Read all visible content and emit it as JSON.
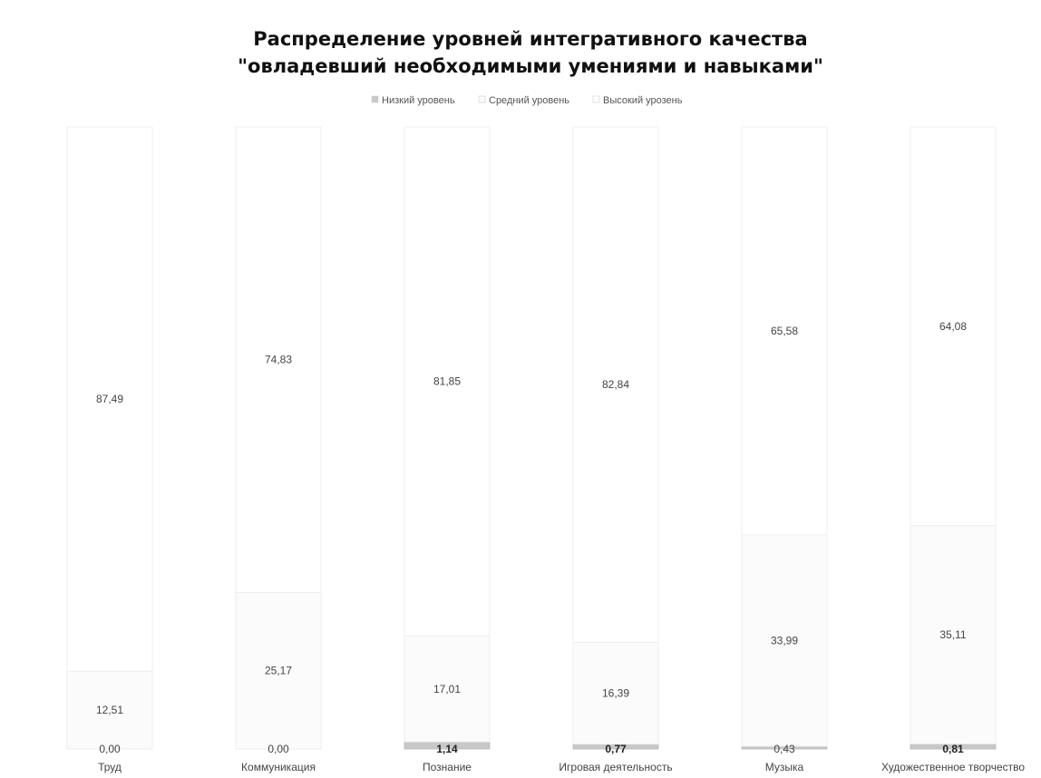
{
  "chart_data": {
    "type": "bar",
    "stacked": true,
    "title_lines": [
      "Распределение уровней интегративного качества",
      "\"овладевший необходимыми умениями и навыками\""
    ],
    "legend_position": "top",
    "categories": [
      "Труд",
      "Коммуникация",
      "Познание",
      "Игровая деятельность",
      "Музыка",
      "Художественное творчество"
    ],
    "series": [
      {
        "name": "Низкий уровень",
        "color": "#c8c8c8",
        "values": [
          0,
          0,
          1.14,
          0.77,
          0.43,
          0.81
        ],
        "labels": [
          "0,00",
          "0,00",
          "1,14",
          "0,77",
          "0,43",
          "0,81"
        ]
      },
      {
        "name": "Средний уровень",
        "color": "#fbfbfb",
        "values": [
          12.51,
          25.17,
          17.01,
          16.39,
          33.99,
          35.11
        ],
        "labels": [
          "12,51",
          "25,17",
          "17,01",
          "16,39",
          "33,99",
          "35,11"
        ]
      },
      {
        "name": "Высокий урозень",
        "color": "#ffffff",
        "values": [
          87.49,
          74.83,
          81.85,
          82.84,
          65.58,
          64.08
        ],
        "labels": [
          "87,49",
          "74,83",
          "81,85",
          "82,84",
          "65,58",
          "64,08"
        ]
      }
    ],
    "ylim": [
      0,
      100
    ],
    "grid": false
  }
}
